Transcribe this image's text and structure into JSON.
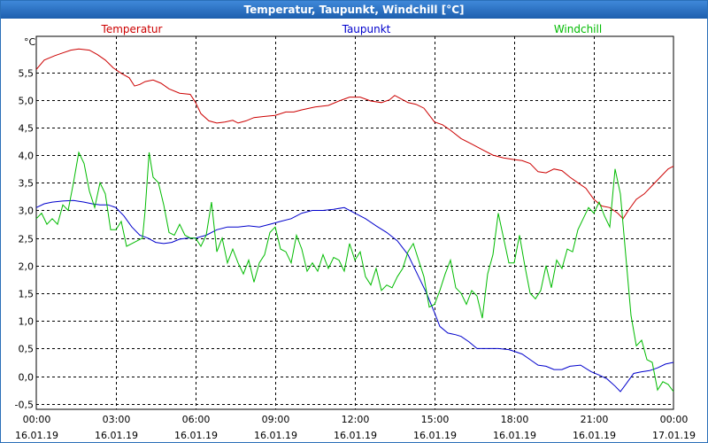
{
  "window": {
    "title": "Temperatur, Taupunkt, Windchill [°C]"
  },
  "chart_data": {
    "type": "line",
    "title": "Temperatur, Taupunkt, Windchill [°C]",
    "ylabel": "°C",
    "xlabel": "",
    "ylim": [
      -0.6,
      6.15
    ],
    "xlim": [
      0,
      24
    ],
    "x_unit": "hours since 16.01.19 00:00",
    "grid": true,
    "legend_position": "top",
    "yticks": [
      -0.5,
      0.0,
      0.5,
      1.0,
      1.5,
      2.0,
      2.5,
      3.0,
      3.5,
      4.0,
      4.5,
      5.0,
      5.5
    ],
    "ytick_labels": [
      "-0,5",
      "0,0",
      "0,5",
      "1,0",
      "1,5",
      "2,0",
      "2,5",
      "3,0",
      "3,5",
      "4,0",
      "4,5",
      "5,0",
      "5,5"
    ],
    "xticks": [
      {
        "x": 0,
        "time": "00:00",
        "date": "16.01.19"
      },
      {
        "x": 3,
        "time": "03:00",
        "date": "16.01.19"
      },
      {
        "x": 6,
        "time": "06:00",
        "date": "16.01.19"
      },
      {
        "x": 9,
        "time": "09:00",
        "date": "16.01.19"
      },
      {
        "x": 12,
        "time": "12:00",
        "date": "16.01.19"
      },
      {
        "x": 15,
        "time": "15:00",
        "date": "16.01.19"
      },
      {
        "x": 18,
        "time": "18:00",
        "date": "16.01.19"
      },
      {
        "x": 21,
        "time": "21:00",
        "date": "16.01.19"
      },
      {
        "x": 24,
        "time": "00:00",
        "date": "17.01.19"
      }
    ],
    "series": [
      {
        "name": "Temperatur",
        "color": "#cc0000",
        "points": [
          [
            0.0,
            5.55
          ],
          [
            0.3,
            5.72
          ],
          [
            0.7,
            5.8
          ],
          [
            1.0,
            5.85
          ],
          [
            1.3,
            5.9
          ],
          [
            1.6,
            5.92
          ],
          [
            2.0,
            5.9
          ],
          [
            2.3,
            5.82
          ],
          [
            2.6,
            5.72
          ],
          [
            2.9,
            5.58
          ],
          [
            3.2,
            5.48
          ],
          [
            3.5,
            5.4
          ],
          [
            3.7,
            5.25
          ],
          [
            3.9,
            5.28
          ],
          [
            4.1,
            5.33
          ],
          [
            4.4,
            5.36
          ],
          [
            4.7,
            5.3
          ],
          [
            5.0,
            5.2
          ],
          [
            5.4,
            5.12
          ],
          [
            5.8,
            5.1
          ],
          [
            6.0,
            4.95
          ],
          [
            6.2,
            4.75
          ],
          [
            6.5,
            4.62
          ],
          [
            6.8,
            4.58
          ],
          [
            7.1,
            4.6
          ],
          [
            7.4,
            4.63
          ],
          [
            7.6,
            4.58
          ],
          [
            7.9,
            4.62
          ],
          [
            8.2,
            4.68
          ],
          [
            8.6,
            4.7
          ],
          [
            9.0,
            4.72
          ],
          [
            9.4,
            4.78
          ],
          [
            9.7,
            4.78
          ],
          [
            10.0,
            4.82
          ],
          [
            10.5,
            4.87
          ],
          [
            11.0,
            4.9
          ],
          [
            11.4,
            4.98
          ],
          [
            11.8,
            5.05
          ],
          [
            12.2,
            5.05
          ],
          [
            12.6,
            4.98
          ],
          [
            13.0,
            4.95
          ],
          [
            13.3,
            5.0
          ],
          [
            13.5,
            5.08
          ],
          [
            13.7,
            5.03
          ],
          [
            14.0,
            4.95
          ],
          [
            14.3,
            4.92
          ],
          [
            14.6,
            4.85
          ],
          [
            15.0,
            4.6
          ],
          [
            15.3,
            4.55
          ],
          [
            15.6,
            4.45
          ],
          [
            16.0,
            4.3
          ],
          [
            16.4,
            4.2
          ],
          [
            16.8,
            4.1
          ],
          [
            17.2,
            4.0
          ],
          [
            17.6,
            3.95
          ],
          [
            18.0,
            3.92
          ],
          [
            18.3,
            3.9
          ],
          [
            18.6,
            3.85
          ],
          [
            18.9,
            3.7
          ],
          [
            19.2,
            3.68
          ],
          [
            19.5,
            3.75
          ],
          [
            19.8,
            3.72
          ],
          [
            20.1,
            3.6
          ],
          [
            20.4,
            3.5
          ],
          [
            20.7,
            3.4
          ],
          [
            21.0,
            3.2
          ],
          [
            21.3,
            3.08
          ],
          [
            21.6,
            3.05
          ],
          [
            21.9,
            2.95
          ],
          [
            22.1,
            2.85
          ],
          [
            22.3,
            3.0
          ],
          [
            22.6,
            3.2
          ],
          [
            22.9,
            3.3
          ],
          [
            23.2,
            3.45
          ],
          [
            23.5,
            3.6
          ],
          [
            23.8,
            3.75
          ],
          [
            24.0,
            3.8
          ]
        ]
      },
      {
        "name": "Taupunkt",
        "color": "#0000cc",
        "points": [
          [
            0.0,
            3.05
          ],
          [
            0.3,
            3.12
          ],
          [
            0.6,
            3.15
          ],
          [
            1.0,
            3.17
          ],
          [
            1.4,
            3.18
          ],
          [
            1.8,
            3.15
          ],
          [
            2.1,
            3.12
          ],
          [
            2.4,
            3.1
          ],
          [
            2.7,
            3.1
          ],
          [
            3.0,
            3.05
          ],
          [
            3.3,
            2.9
          ],
          [
            3.6,
            2.7
          ],
          [
            3.9,
            2.55
          ],
          [
            4.2,
            2.5
          ],
          [
            4.5,
            2.42
          ],
          [
            4.8,
            2.4
          ],
          [
            5.1,
            2.42
          ],
          [
            5.4,
            2.48
          ],
          [
            5.7,
            2.5
          ],
          [
            6.0,
            2.5
          ],
          [
            6.4,
            2.55
          ],
          [
            6.8,
            2.65
          ],
          [
            7.2,
            2.7
          ],
          [
            7.6,
            2.7
          ],
          [
            8.0,
            2.72
          ],
          [
            8.4,
            2.7
          ],
          [
            8.8,
            2.75
          ],
          [
            9.2,
            2.8
          ],
          [
            9.6,
            2.85
          ],
          [
            10.0,
            2.95
          ],
          [
            10.4,
            3.0
          ],
          [
            10.8,
            3.0
          ],
          [
            11.2,
            3.02
          ],
          [
            11.6,
            3.05
          ],
          [
            12.0,
            2.95
          ],
          [
            12.4,
            2.85
          ],
          [
            12.8,
            2.72
          ],
          [
            13.2,
            2.6
          ],
          [
            13.6,
            2.45
          ],
          [
            14.0,
            2.2
          ],
          [
            14.4,
            1.8
          ],
          [
            14.7,
            1.5
          ],
          [
            15.0,
            1.15
          ],
          [
            15.2,
            0.9
          ],
          [
            15.5,
            0.78
          ],
          [
            15.8,
            0.75
          ],
          [
            16.0,
            0.72
          ],
          [
            16.3,
            0.62
          ],
          [
            16.6,
            0.5
          ],
          [
            17.0,
            0.5
          ],
          [
            17.4,
            0.5
          ],
          [
            17.8,
            0.48
          ],
          [
            18.0,
            0.45
          ],
          [
            18.3,
            0.4
          ],
          [
            18.6,
            0.3
          ],
          [
            18.9,
            0.2
          ],
          [
            19.2,
            0.18
          ],
          [
            19.5,
            0.12
          ],
          [
            19.8,
            0.12
          ],
          [
            20.1,
            0.18
          ],
          [
            20.5,
            0.2
          ],
          [
            20.9,
            0.08
          ],
          [
            21.2,
            0.02
          ],
          [
            21.5,
            -0.05
          ],
          [
            21.8,
            -0.18
          ],
          [
            22.0,
            -0.28
          ],
          [
            22.2,
            -0.15
          ],
          [
            22.5,
            0.05
          ],
          [
            22.8,
            0.08
          ],
          [
            23.1,
            0.1
          ],
          [
            23.4,
            0.15
          ],
          [
            23.7,
            0.22
          ],
          [
            24.0,
            0.25
          ]
        ]
      },
      {
        "name": "Windchill",
        "color": "#00bb00",
        "points": [
          [
            0.0,
            2.85
          ],
          [
            0.2,
            2.95
          ],
          [
            0.4,
            2.75
          ],
          [
            0.6,
            2.85
          ],
          [
            0.8,
            2.75
          ],
          [
            1.0,
            3.1
          ],
          [
            1.2,
            3.0
          ],
          [
            1.4,
            3.5
          ],
          [
            1.6,
            4.05
          ],
          [
            1.8,
            3.85
          ],
          [
            2.0,
            3.35
          ],
          [
            2.2,
            3.05
          ],
          [
            2.4,
            3.5
          ],
          [
            2.6,
            3.3
          ],
          [
            2.8,
            2.65
          ],
          [
            3.0,
            2.65
          ],
          [
            3.2,
            2.8
          ],
          [
            3.4,
            2.35
          ],
          [
            3.6,
            2.4
          ],
          [
            3.8,
            2.45
          ],
          [
            4.0,
            2.5
          ],
          [
            4.1,
            3.0
          ],
          [
            4.25,
            4.05
          ],
          [
            4.4,
            3.6
          ],
          [
            4.6,
            3.5
          ],
          [
            4.8,
            3.1
          ],
          [
            5.0,
            2.6
          ],
          [
            5.2,
            2.55
          ],
          [
            5.4,
            2.75
          ],
          [
            5.6,
            2.55
          ],
          [
            5.8,
            2.5
          ],
          [
            6.0,
            2.5
          ],
          [
            6.2,
            2.35
          ],
          [
            6.4,
            2.55
          ],
          [
            6.6,
            3.15
          ],
          [
            6.8,
            2.25
          ],
          [
            7.0,
            2.5
          ],
          [
            7.2,
            2.05
          ],
          [
            7.4,
            2.3
          ],
          [
            7.6,
            2.05
          ],
          [
            7.8,
            1.85
          ],
          [
            8.0,
            2.1
          ],
          [
            8.2,
            1.7
          ],
          [
            8.4,
            2.05
          ],
          [
            8.6,
            2.2
          ],
          [
            8.8,
            2.6
          ],
          [
            9.0,
            2.7
          ],
          [
            9.2,
            2.3
          ],
          [
            9.4,
            2.25
          ],
          [
            9.6,
            2.05
          ],
          [
            9.8,
            2.55
          ],
          [
            10.0,
            2.3
          ],
          [
            10.2,
            1.9
          ],
          [
            10.4,
            2.05
          ],
          [
            10.6,
            1.9
          ],
          [
            10.8,
            2.2
          ],
          [
            11.0,
            1.95
          ],
          [
            11.2,
            2.15
          ],
          [
            11.4,
            2.1
          ],
          [
            11.6,
            1.9
          ],
          [
            11.8,
            2.4
          ],
          [
            12.0,
            2.1
          ],
          [
            12.2,
            2.25
          ],
          [
            12.4,
            1.8
          ],
          [
            12.6,
            1.65
          ],
          [
            12.8,
            1.95
          ],
          [
            13.0,
            1.55
          ],
          [
            13.2,
            1.65
          ],
          [
            13.4,
            1.6
          ],
          [
            13.6,
            1.8
          ],
          [
            13.8,
            1.95
          ],
          [
            14.0,
            2.25
          ],
          [
            14.2,
            2.4
          ],
          [
            14.4,
            2.1
          ],
          [
            14.6,
            1.8
          ],
          [
            14.8,
            1.25
          ],
          [
            15.0,
            1.3
          ],
          [
            15.2,
            1.55
          ],
          [
            15.4,
            1.85
          ],
          [
            15.6,
            2.1
          ],
          [
            15.8,
            1.6
          ],
          [
            16.0,
            1.5
          ],
          [
            16.2,
            1.3
          ],
          [
            16.4,
            1.55
          ],
          [
            16.6,
            1.45
          ],
          [
            16.8,
            1.05
          ],
          [
            17.0,
            1.85
          ],
          [
            17.2,
            2.2
          ],
          [
            17.4,
            2.95
          ],
          [
            17.6,
            2.5
          ],
          [
            17.8,
            2.05
          ],
          [
            18.0,
            2.05
          ],
          [
            18.2,
            2.55
          ],
          [
            18.4,
            2.0
          ],
          [
            18.6,
            1.5
          ],
          [
            18.8,
            1.4
          ],
          [
            19.0,
            1.55
          ],
          [
            19.2,
            2.0
          ],
          [
            19.4,
            1.6
          ],
          [
            19.6,
            2.1
          ],
          [
            19.8,
            1.95
          ],
          [
            20.0,
            2.3
          ],
          [
            20.2,
            2.25
          ],
          [
            20.4,
            2.65
          ],
          [
            20.6,
            2.85
          ],
          [
            20.8,
            3.05
          ],
          [
            21.0,
            2.95
          ],
          [
            21.2,
            3.15
          ],
          [
            21.4,
            2.9
          ],
          [
            21.6,
            2.7
          ],
          [
            21.8,
            3.75
          ],
          [
            22.0,
            3.3
          ],
          [
            22.2,
            2.2
          ],
          [
            22.4,
            1.1
          ],
          [
            22.6,
            0.55
          ],
          [
            22.8,
            0.65
          ],
          [
            23.0,
            0.3
          ],
          [
            23.2,
            0.25
          ],
          [
            23.4,
            -0.25
          ],
          [
            23.6,
            -0.1
          ],
          [
            23.8,
            -0.15
          ],
          [
            24.0,
            -0.28
          ]
        ]
      }
    ]
  }
}
